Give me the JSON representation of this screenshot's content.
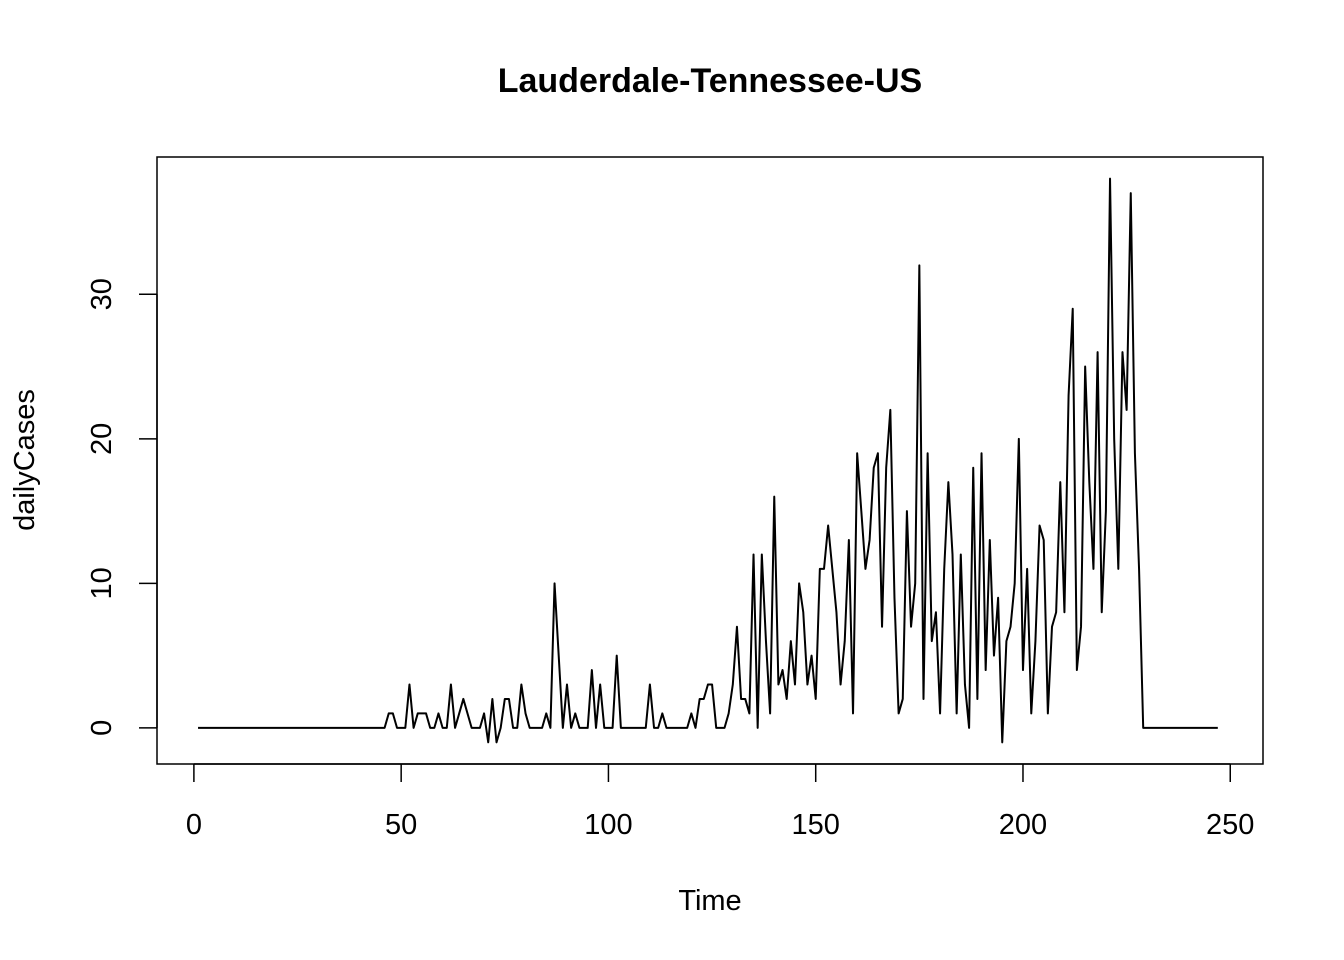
{
  "chart_data": {
    "type": "line",
    "title": "Lauderdale-Tennessee-US",
    "xlabel": "Time",
    "ylabel": "dailyCases",
    "xlim": [
      -8.9,
      257.9
    ],
    "ylim": [
      -2.5,
      39.5
    ],
    "x_ticks": [
      0,
      50,
      100,
      150,
      200,
      250
    ],
    "y_ticks": [
      0,
      10,
      20,
      30
    ],
    "grid": false,
    "legend": "none",
    "line_color": "#000000",
    "series": [
      {
        "x_start": 1,
        "values": [
          0,
          0,
          0,
          0,
          0,
          0,
          0,
          0,
          0,
          0,
          0,
          0,
          0,
          0,
          0,
          0,
          0,
          0,
          0,
          0,
          0,
          0,
          0,
          0,
          0,
          0,
          0,
          0,
          0,
          0,
          0,
          0,
          0,
          0,
          0,
          0,
          0,
          0,
          0,
          0,
          0,
          0,
          0,
          0,
          0,
          0,
          1,
          1,
          0,
          0,
          0,
          3,
          0,
          1,
          1,
          1,
          0,
          0,
          1,
          0,
          0,
          3,
          0,
          1,
          2,
          1,
          0,
          0,
          0,
          1,
          -1,
          2,
          -1,
          0,
          2,
          2,
          0,
          0,
          3,
          1,
          0,
          0,
          0,
          0,
          1,
          0,
          10,
          5,
          0,
          3,
          0,
          1,
          0,
          0,
          0,
          4,
          0,
          3,
          0,
          0,
          0,
          5,
          0,
          0,
          0,
          0,
          0,
          0,
          0,
          3,
          0,
          0,
          1,
          0,
          0,
          0,
          0,
          0,
          0,
          1,
          0,
          2,
          2,
          3,
          3,
          0,
          0,
          0,
          1,
          3,
          7,
          2,
          2,
          1,
          12,
          0,
          12,
          6,
          1,
          16,
          3,
          4,
          2,
          6,
          3,
          10,
          8,
          3,
          5,
          2,
          11,
          11,
          14,
          11,
          8,
          3,
          6,
          13,
          1,
          19,
          15,
          11,
          13,
          18,
          19,
          7,
          18,
          22,
          9,
          1,
          2,
          15,
          7,
          10,
          32,
          2,
          19,
          6,
          8,
          1,
          11,
          17,
          12,
          1,
          12,
          3,
          0,
          18,
          2,
          19,
          4,
          13,
          5,
          9,
          -1,
          6,
          7,
          10,
          20,
          4,
          11,
          1,
          6,
          14,
          13,
          1,
          7,
          8,
          17,
          8,
          23,
          29,
          4,
          7,
          25,
          17,
          11,
          26,
          8,
          15,
          38,
          20,
          11,
          26,
          22,
          37,
          19,
          11,
          0,
          0,
          0,
          0,
          0,
          0,
          0,
          0,
          0,
          0,
          0,
          0,
          0,
          0,
          0,
          0,
          0,
          0,
          0
        ]
      }
    ]
  }
}
